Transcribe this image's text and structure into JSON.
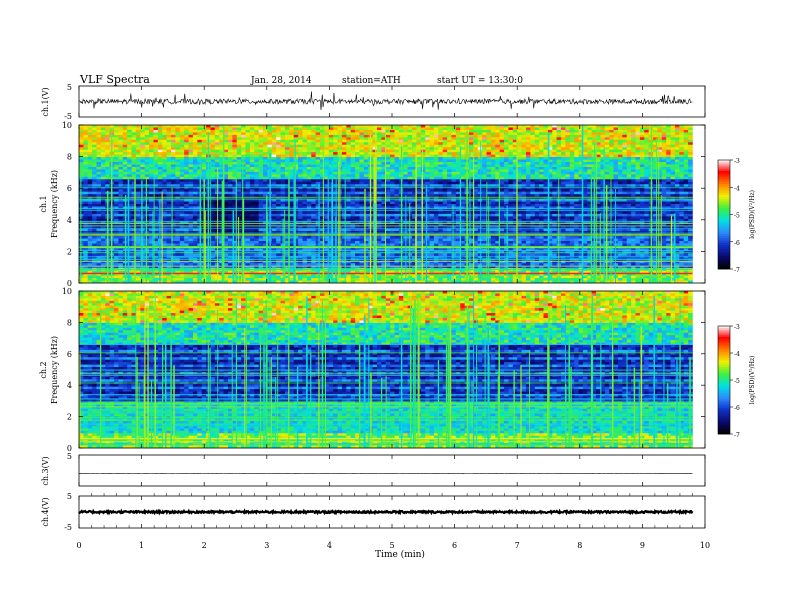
{
  "header": {
    "title": "VLF  Spectra",
    "date": "Jan. 28, 2014",
    "station": "station=ATH",
    "start": "start  UT  =   13:30:0"
  },
  "chart_data": [
    {
      "type": "line",
      "panel": "ch1-waveform",
      "ylabel": "ch.1(V)",
      "ylim": [
        -5,
        5
      ],
      "yticks": [
        "5",
        "-5"
      ],
      "xlim": [
        0,
        10
      ],
      "trace": {
        "baseline": 0,
        "noise_amplitude": 0.8,
        "spike_amplitude": 2.8,
        "end_min": 9.8
      }
    },
    {
      "type": "heatmap",
      "panel": "ch1-spectrogram",
      "ylabel": "ch.1\nFrequency  (kHz)",
      "ylim": [
        0,
        10
      ],
      "yticks": [
        "10",
        "8",
        "6",
        "4",
        "2",
        "0"
      ],
      "xlim": [
        0,
        9.8
      ],
      "colorbar": {
        "label": "log(PSD)(V²/Hz)",
        "ticks": [
          "-3",
          "-4",
          "-5",
          "-6",
          "-7"
        ],
        "range": [
          -7,
          -3
        ]
      }
    },
    {
      "type": "heatmap",
      "panel": "ch2-spectrogram",
      "ylabel": "ch.2\nFrequency  (kHz)",
      "ylim": [
        0,
        10
      ],
      "yticks": [
        "10",
        "8",
        "6",
        "4",
        "2",
        "0"
      ],
      "xlim": [
        0,
        9.8
      ],
      "colorbar": {
        "label": "log(PSD)(V²/Hz)",
        "ticks": [
          "-3",
          "-4",
          "-5",
          "-6",
          "-7"
        ],
        "range": [
          -7,
          -3
        ]
      }
    },
    {
      "type": "line",
      "panel": "ch3-waveform",
      "ylabel": "ch.3(V)",
      "ylim": [
        -5,
        5
      ],
      "yticks": [
        "5"
      ],
      "xlim": [
        0,
        10
      ],
      "trace": {
        "baseline": -1,
        "noise_amplitude": 0.05,
        "end_min": 9.8
      }
    },
    {
      "type": "line",
      "panel": "ch4-waveform",
      "ylabel": "ch.4(V)",
      "ylim": [
        -5,
        5
      ],
      "yticks": [
        "5",
        "-5"
      ],
      "xlim": [
        0,
        10
      ],
      "trace": {
        "baseline": 0,
        "noise_amplitude": 0.3,
        "end_min": 9.8
      }
    }
  ],
  "xaxis": {
    "label": "Time  (min)",
    "ticks": [
      "0",
      "1",
      "2",
      "3",
      "4",
      "5",
      "6",
      "7",
      "8",
      "9",
      "10"
    ]
  },
  "colors": {
    "colormap": [
      "#000000",
      "#0a0a6e",
      "#1030c8",
      "#2a8cff",
      "#00e0e0",
      "#40f040",
      "#f0f000",
      "#ff8000",
      "#ff0000",
      "#ffffff"
    ]
  }
}
